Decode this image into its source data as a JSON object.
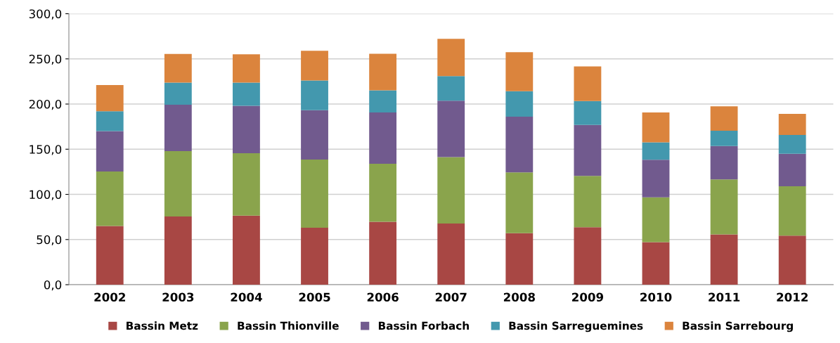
{
  "chart_data": {
    "type": "bar",
    "stacked": true,
    "categories": [
      "2002",
      "2003",
      "2004",
      "2005",
      "2006",
      "2007",
      "2008",
      "2009",
      "2010",
      "2011",
      "2012"
    ],
    "series": [
      {
        "name": "Bassin Metz",
        "color": "#a84744",
        "values": [
          65.1,
          75.6,
          76.5,
          63.0,
          69.6,
          67.8,
          57.0,
          63.6,
          47.2,
          55.6,
          54.4
        ]
      },
      {
        "name": "Bassin Thionville",
        "color": "#8aa44c",
        "values": [
          60.3,
          72.2,
          69.0,
          75.6,
          64.2,
          73.5,
          67.3,
          56.8,
          49.6,
          60.9,
          54.6
        ]
      },
      {
        "name": "Bassin Forbach",
        "color": "#715a8e",
        "values": [
          44.6,
          51.4,
          52.5,
          54.6,
          56.8,
          62.4,
          61.8,
          56.4,
          41.5,
          37.0,
          35.9
        ]
      },
      {
        "name": "Bassin Sarreguemines",
        "color": "#4398ae",
        "values": [
          22.1,
          24.5,
          25.7,
          32.9,
          24.5,
          27.2,
          28.1,
          26.6,
          19.4,
          17.0,
          20.9
        ]
      },
      {
        "name": "Bassin Sarrebourg",
        "color": "#db843d",
        "values": [
          28.9,
          31.7,
          31.4,
          32.9,
          40.6,
          41.2,
          43.3,
          38.2,
          32.9,
          26.9,
          23.3
        ]
      }
    ],
    "ylim": [
      0,
      300
    ],
    "yticks": [
      {
        "value": 0,
        "label": "0,0"
      },
      {
        "value": 50,
        "label": "50,0"
      },
      {
        "value": 100,
        "label": "100,0"
      },
      {
        "value": 150,
        "label": "150,0"
      },
      {
        "value": 200,
        "label": "200,0"
      },
      {
        "value": 250,
        "label": "250,0"
      },
      {
        "value": 300,
        "label": "300,0"
      }
    ],
    "grid": "y",
    "legend": "bottom"
  }
}
